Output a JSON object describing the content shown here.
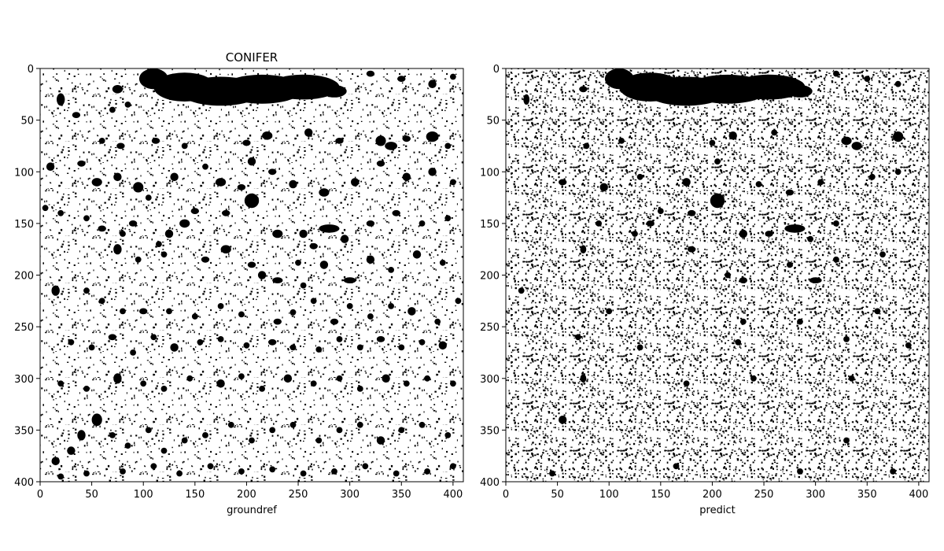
{
  "chart_data": [
    {
      "type": "heatmap",
      "title": "CONIFER",
      "xlabel": "groundref",
      "ylabel": "",
      "xlim": [
        0,
        410
      ],
      "ylim": [
        400,
        0
      ],
      "xticks": [
        0,
        50,
        100,
        150,
        200,
        250,
        300,
        350,
        400
      ],
      "yticks": [
        0,
        50,
        100,
        150,
        200,
        250,
        300,
        350,
        400
      ],
      "colors": {
        "class": "#000000",
        "background": "#ffffff"
      },
      "blobs": [
        [
          110,
          10,
          14,
          10
        ],
        [
          140,
          18,
          30,
          14
        ],
        [
          175,
          22,
          40,
          14
        ],
        [
          215,
          20,
          40,
          14
        ],
        [
          255,
          18,
          35,
          12
        ],
        [
          285,
          22,
          12,
          6
        ],
        [
          20,
          30,
          4,
          6
        ],
        [
          35,
          45,
          4,
          3
        ],
        [
          75,
          20,
          5,
          4
        ],
        [
          70,
          40,
          3,
          3
        ],
        [
          85,
          35,
          3,
          3
        ],
        [
          230,
          15,
          4,
          3
        ],
        [
          250,
          10,
          3,
          3
        ],
        [
          320,
          5,
          4,
          3
        ],
        [
          350,
          10,
          4,
          3
        ],
        [
          380,
          15,
          4,
          4
        ],
        [
          400,
          8,
          3,
          3
        ],
        [
          60,
          70,
          3,
          3
        ],
        [
          78,
          75,
          4,
          3
        ],
        [
          112,
          70,
          4,
          3
        ],
        [
          140,
          75,
          3,
          3
        ],
        [
          200,
          72,
          4,
          3
        ],
        [
          220,
          65,
          5,
          4
        ],
        [
          260,
          62,
          4,
          4
        ],
        [
          290,
          70,
          4,
          3
        ],
        [
          330,
          70,
          5,
          5
        ],
        [
          340,
          75,
          6,
          4
        ],
        [
          355,
          68,
          4,
          3
        ],
        [
          380,
          66,
          6,
          5
        ],
        [
          395,
          75,
          3,
          3
        ],
        [
          10,
          95,
          4,
          4
        ],
        [
          40,
          92,
          4,
          3
        ],
        [
          55,
          110,
          5,
          4
        ],
        [
          75,
          105,
          4,
          4
        ],
        [
          95,
          115,
          5,
          5
        ],
        [
          105,
          125,
          3,
          3
        ],
        [
          130,
          105,
          4,
          4
        ],
        [
          160,
          95,
          3,
          3
        ],
        [
          175,
          110,
          5,
          4
        ],
        [
          195,
          115,
          4,
          3
        ],
        [
          205,
          90,
          4,
          4
        ],
        [
          225,
          100,
          4,
          3
        ],
        [
          245,
          112,
          4,
          4
        ],
        [
          275,
          120,
          5,
          4
        ],
        [
          305,
          110,
          4,
          4
        ],
        [
          330,
          92,
          4,
          3
        ],
        [
          355,
          105,
          4,
          4
        ],
        [
          380,
          100,
          4,
          4
        ],
        [
          400,
          110,
          3,
          3
        ],
        [
          205,
          128,
          7,
          7
        ],
        [
          180,
          140,
          4,
          3
        ],
        [
          150,
          138,
          4,
          3
        ],
        [
          140,
          150,
          5,
          4
        ],
        [
          125,
          160,
          4,
          4
        ],
        [
          115,
          170,
          3,
          3
        ],
        [
          90,
          150,
          4,
          3
        ],
        [
          80,
          160,
          3,
          3
        ],
        [
          60,
          155,
          4,
          3
        ],
        [
          45,
          145,
          3,
          3
        ],
        [
          20,
          140,
          3,
          3
        ],
        [
          5,
          135,
          3,
          3
        ],
        [
          230,
          160,
          5,
          4
        ],
        [
          255,
          160,
          4,
          4
        ],
        [
          265,
          172,
          4,
          3
        ],
        [
          280,
          155,
          10,
          4
        ],
        [
          295,
          165,
          4,
          4
        ],
        [
          320,
          150,
          4,
          3
        ],
        [
          345,
          140,
          4,
          3
        ],
        [
          370,
          150,
          3,
          3
        ],
        [
          395,
          145,
          3,
          3
        ],
        [
          75,
          175,
          4,
          5
        ],
        [
          95,
          185,
          3,
          3
        ],
        [
          120,
          180,
          3,
          3
        ],
        [
          160,
          185,
          4,
          3
        ],
        [
          180,
          175,
          5,
          4
        ],
        [
          205,
          190,
          4,
          3
        ],
        [
          215,
          200,
          4,
          4
        ],
        [
          230,
          205,
          5,
          3
        ],
        [
          250,
          188,
          3,
          3
        ],
        [
          275,
          190,
          4,
          4
        ],
        [
          255,
          210,
          3,
          3
        ],
        [
          300,
          205,
          6,
          3
        ],
        [
          320,
          185,
          4,
          4
        ],
        [
          340,
          195,
          3,
          3
        ],
        [
          365,
          180,
          4,
          4
        ],
        [
          390,
          188,
          3,
          3
        ],
        [
          15,
          215,
          4,
          5
        ],
        [
          45,
          215,
          3,
          3
        ],
        [
          60,
          225,
          3,
          3
        ],
        [
          80,
          235,
          3,
          3
        ],
        [
          100,
          235,
          4,
          3
        ],
        [
          125,
          235,
          3,
          3
        ],
        [
          150,
          240,
          3,
          3
        ],
        [
          175,
          230,
          3,
          3
        ],
        [
          195,
          238,
          3,
          3
        ],
        [
          230,
          245,
          4,
          3
        ],
        [
          245,
          236,
          3,
          3
        ],
        [
          265,
          225,
          3,
          3
        ],
        [
          285,
          245,
          4,
          3
        ],
        [
          300,
          230,
          3,
          3
        ],
        [
          320,
          240,
          3,
          3
        ],
        [
          340,
          230,
          3,
          3
        ],
        [
          360,
          235,
          4,
          4
        ],
        [
          385,
          245,
          3,
          3
        ],
        [
          405,
          225,
          3,
          3
        ],
        [
          30,
          265,
          3,
          3
        ],
        [
          50,
          270,
          3,
          3
        ],
        [
          70,
          260,
          4,
          3
        ],
        [
          90,
          275,
          3,
          3
        ],
        [
          110,
          260,
          3,
          3
        ],
        [
          130,
          270,
          4,
          4
        ],
        [
          155,
          265,
          3,
          3
        ],
        [
          175,
          262,
          3,
          3
        ],
        [
          200,
          268,
          3,
          3
        ],
        [
          225,
          265,
          4,
          3
        ],
        [
          245,
          270,
          3,
          3
        ],
        [
          270,
          272,
          3,
          3
        ],
        [
          290,
          262,
          3,
          3
        ],
        [
          310,
          270,
          3,
          3
        ],
        [
          330,
          262,
          4,
          3
        ],
        [
          350,
          270,
          3,
          3
        ],
        [
          370,
          265,
          3,
          3
        ],
        [
          390,
          268,
          4,
          4
        ],
        [
          20,
          305,
          3,
          3
        ],
        [
          45,
          310,
          3,
          3
        ],
        [
          75,
          300,
          4,
          5
        ],
        [
          100,
          305,
          3,
          3
        ],
        [
          120,
          310,
          3,
          3
        ],
        [
          145,
          300,
          3,
          3
        ],
        [
          175,
          305,
          4,
          4
        ],
        [
          195,
          298,
          3,
          3
        ],
        [
          215,
          310,
          3,
          3
        ],
        [
          240,
          300,
          4,
          4
        ],
        [
          265,
          305,
          3,
          3
        ],
        [
          290,
          300,
          3,
          3
        ],
        [
          310,
          310,
          3,
          3
        ],
        [
          335,
          300,
          4,
          4
        ],
        [
          355,
          305,
          3,
          3
        ],
        [
          375,
          300,
          3,
          3
        ],
        [
          400,
          305,
          3,
          3
        ],
        [
          55,
          340,
          5,
          6
        ],
        [
          40,
          355,
          4,
          5
        ],
        [
          30,
          370,
          4,
          4
        ],
        [
          15,
          380,
          4,
          4
        ],
        [
          70,
          355,
          3,
          3
        ],
        [
          85,
          365,
          3,
          3
        ],
        [
          105,
          350,
          3,
          3
        ],
        [
          120,
          370,
          3,
          3
        ],
        [
          140,
          360,
          3,
          3
        ],
        [
          160,
          355,
          3,
          3
        ],
        [
          185,
          345,
          3,
          3
        ],
        [
          205,
          360,
          3,
          3
        ],
        [
          225,
          350,
          3,
          3
        ],
        [
          245,
          345,
          3,
          3
        ],
        [
          270,
          360,
          3,
          3
        ],
        [
          290,
          350,
          3,
          3
        ],
        [
          310,
          345,
          3,
          3
        ],
        [
          330,
          360,
          4,
          4
        ],
        [
          350,
          350,
          3,
          3
        ],
        [
          370,
          345,
          3,
          3
        ],
        [
          395,
          355,
          3,
          3
        ],
        [
          20,
          395,
          3,
          3
        ],
        [
          45,
          392,
          3,
          3
        ],
        [
          80,
          390,
          3,
          3
        ],
        [
          110,
          385,
          3,
          3
        ],
        [
          135,
          392,
          3,
          3
        ],
        [
          165,
          385,
          3,
          3
        ],
        [
          195,
          390,
          3,
          3
        ],
        [
          225,
          388,
          3,
          3
        ],
        [
          255,
          392,
          3,
          3
        ],
        [
          285,
          390,
          3,
          3
        ],
        [
          315,
          385,
          3,
          3
        ],
        [
          345,
          392,
          3,
          3
        ],
        [
          375,
          390,
          3,
          3
        ],
        [
          400,
          385,
          3,
          3
        ]
      ]
    },
    {
      "type": "heatmap",
      "title": "",
      "xlabel": "predict",
      "ylabel": "",
      "xlim": [
        0,
        410
      ],
      "ylim": [
        400,
        0
      ],
      "xticks": [
        0,
        50,
        100,
        150,
        200,
        250,
        300,
        350,
        400
      ],
      "yticks": [
        0,
        50,
        100,
        150,
        200,
        250,
        300,
        350,
        400
      ],
      "colors": {
        "class": "#000000",
        "background": "#ffffff"
      },
      "blobs": [
        [
          110,
          10,
          14,
          10
        ],
        [
          140,
          18,
          30,
          14
        ],
        [
          175,
          22,
          40,
          14
        ],
        [
          215,
          20,
          40,
          14
        ],
        [
          255,
          18,
          35,
          12
        ],
        [
          285,
          22,
          12,
          6
        ],
        [
          20,
          30,
          3,
          5
        ],
        [
          75,
          20,
          4,
          3
        ],
        [
          230,
          15,
          3,
          3
        ],
        [
          320,
          5,
          3,
          3
        ],
        [
          350,
          10,
          3,
          3
        ],
        [
          380,
          15,
          3,
          3
        ],
        [
          78,
          75,
          3,
          3
        ],
        [
          112,
          70,
          3,
          3
        ],
        [
          200,
          72,
          3,
          3
        ],
        [
          220,
          65,
          4,
          4
        ],
        [
          260,
          62,
          3,
          3
        ],
        [
          330,
          70,
          5,
          4
        ],
        [
          340,
          75,
          5,
          4
        ],
        [
          380,
          66,
          5,
          5
        ],
        [
          55,
          110,
          4,
          3
        ],
        [
          95,
          115,
          4,
          4
        ],
        [
          130,
          105,
          3,
          3
        ],
        [
          175,
          110,
          4,
          4
        ],
        [
          205,
          90,
          3,
          3
        ],
        [
          245,
          112,
          3,
          3
        ],
        [
          275,
          120,
          4,
          3
        ],
        [
          305,
          110,
          3,
          3
        ],
        [
          355,
          105,
          3,
          3
        ],
        [
          380,
          100,
          3,
          3
        ],
        [
          205,
          128,
          7,
          7
        ],
        [
          180,
          140,
          4,
          3
        ],
        [
          150,
          138,
          3,
          3
        ],
        [
          140,
          150,
          4,
          3
        ],
        [
          125,
          160,
          3,
          3
        ],
        [
          90,
          150,
          3,
          3
        ],
        [
          230,
          160,
          4,
          4
        ],
        [
          255,
          160,
          4,
          3
        ],
        [
          280,
          155,
          10,
          4
        ],
        [
          295,
          165,
          3,
          3
        ],
        [
          320,
          150,
          3,
          3
        ],
        [
          75,
          175,
          3,
          4
        ],
        [
          180,
          175,
          4,
          3
        ],
        [
          215,
          200,
          3,
          3
        ],
        [
          230,
          205,
          4,
          3
        ],
        [
          275,
          190,
          3,
          3
        ],
        [
          300,
          205,
          6,
          3
        ],
        [
          320,
          185,
          3,
          3
        ],
        [
          365,
          180,
          3,
          3
        ],
        [
          15,
          215,
          3,
          3
        ],
        [
          100,
          235,
          3,
          3
        ],
        [
          230,
          245,
          3,
          3
        ],
        [
          285,
          245,
          3,
          3
        ],
        [
          360,
          235,
          3,
          3
        ],
        [
          70,
          260,
          3,
          3
        ],
        [
          130,
          270,
          3,
          3
        ],
        [
          225,
          265,
          3,
          3
        ],
        [
          330,
          262,
          3,
          3
        ],
        [
          390,
          268,
          3,
          3
        ],
        [
          75,
          300,
          3,
          4
        ],
        [
          175,
          305,
          3,
          3
        ],
        [
          240,
          300,
          3,
          3
        ],
        [
          335,
          300,
          3,
          3
        ],
        [
          55,
          340,
          4,
          4
        ],
        [
          330,
          360,
          3,
          3
        ],
        [
          45,
          392,
          3,
          3
        ],
        [
          165,
          385,
          3,
          3
        ],
        [
          285,
          390,
          3,
          3
        ],
        [
          375,
          390,
          3,
          3
        ]
      ]
    }
  ]
}
